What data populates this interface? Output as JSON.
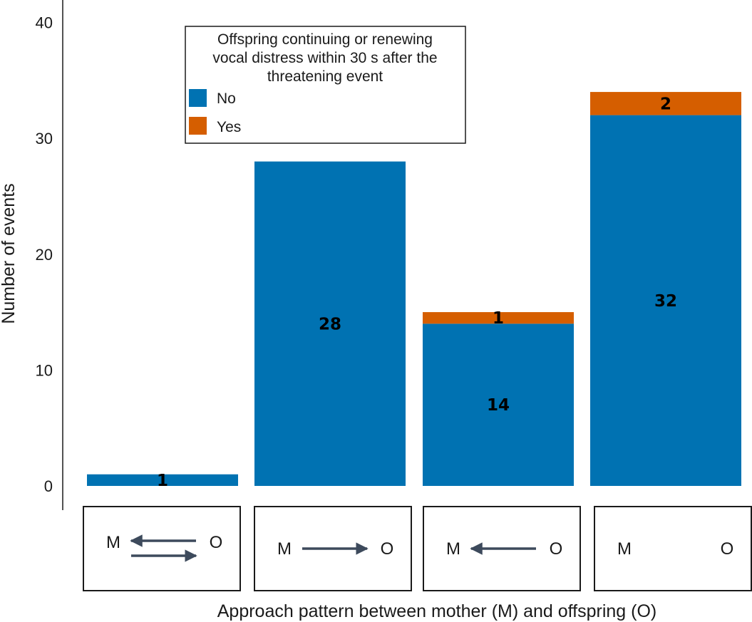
{
  "chart_data": {
    "type": "bar",
    "stacked": true,
    "categories": [
      "M ⇄ O",
      "M → O",
      "M ← O",
      "M   O"
    ],
    "series": [
      {
        "name": "No",
        "color": "#0072b2",
        "values": [
          1,
          28,
          14,
          32
        ]
      },
      {
        "name": "Yes",
        "color": "#d55e00",
        "values": [
          0,
          0,
          1,
          2
        ]
      }
    ],
    "ylim": [
      0,
      40
    ],
    "yticks": [
      0,
      10,
      20,
      30,
      40
    ],
    "ylabel": "Number of events",
    "xlabel": "Approach pattern between mother (M) and offspring (O)",
    "legend": {
      "title": [
        "Offspring continuing or renewing",
        "vocal distress within 30 s after the",
        "threatening event"
      ],
      "position": "top-left",
      "entries": [
        "No",
        "Yes"
      ]
    },
    "grid": false
  },
  "panels": [
    {
      "left": "M",
      "right": "O",
      "arrows": "both"
    },
    {
      "left": "M",
      "right": "O",
      "arrows": "right"
    },
    {
      "left": "M",
      "right": "O",
      "arrows": "left"
    },
    {
      "left": "M",
      "right": "O",
      "arrows": "none"
    }
  ],
  "colors": {
    "axis": "#1a1a1a",
    "arrow": "#3d4a5c",
    "panel_border": "#1a1a1a"
  }
}
